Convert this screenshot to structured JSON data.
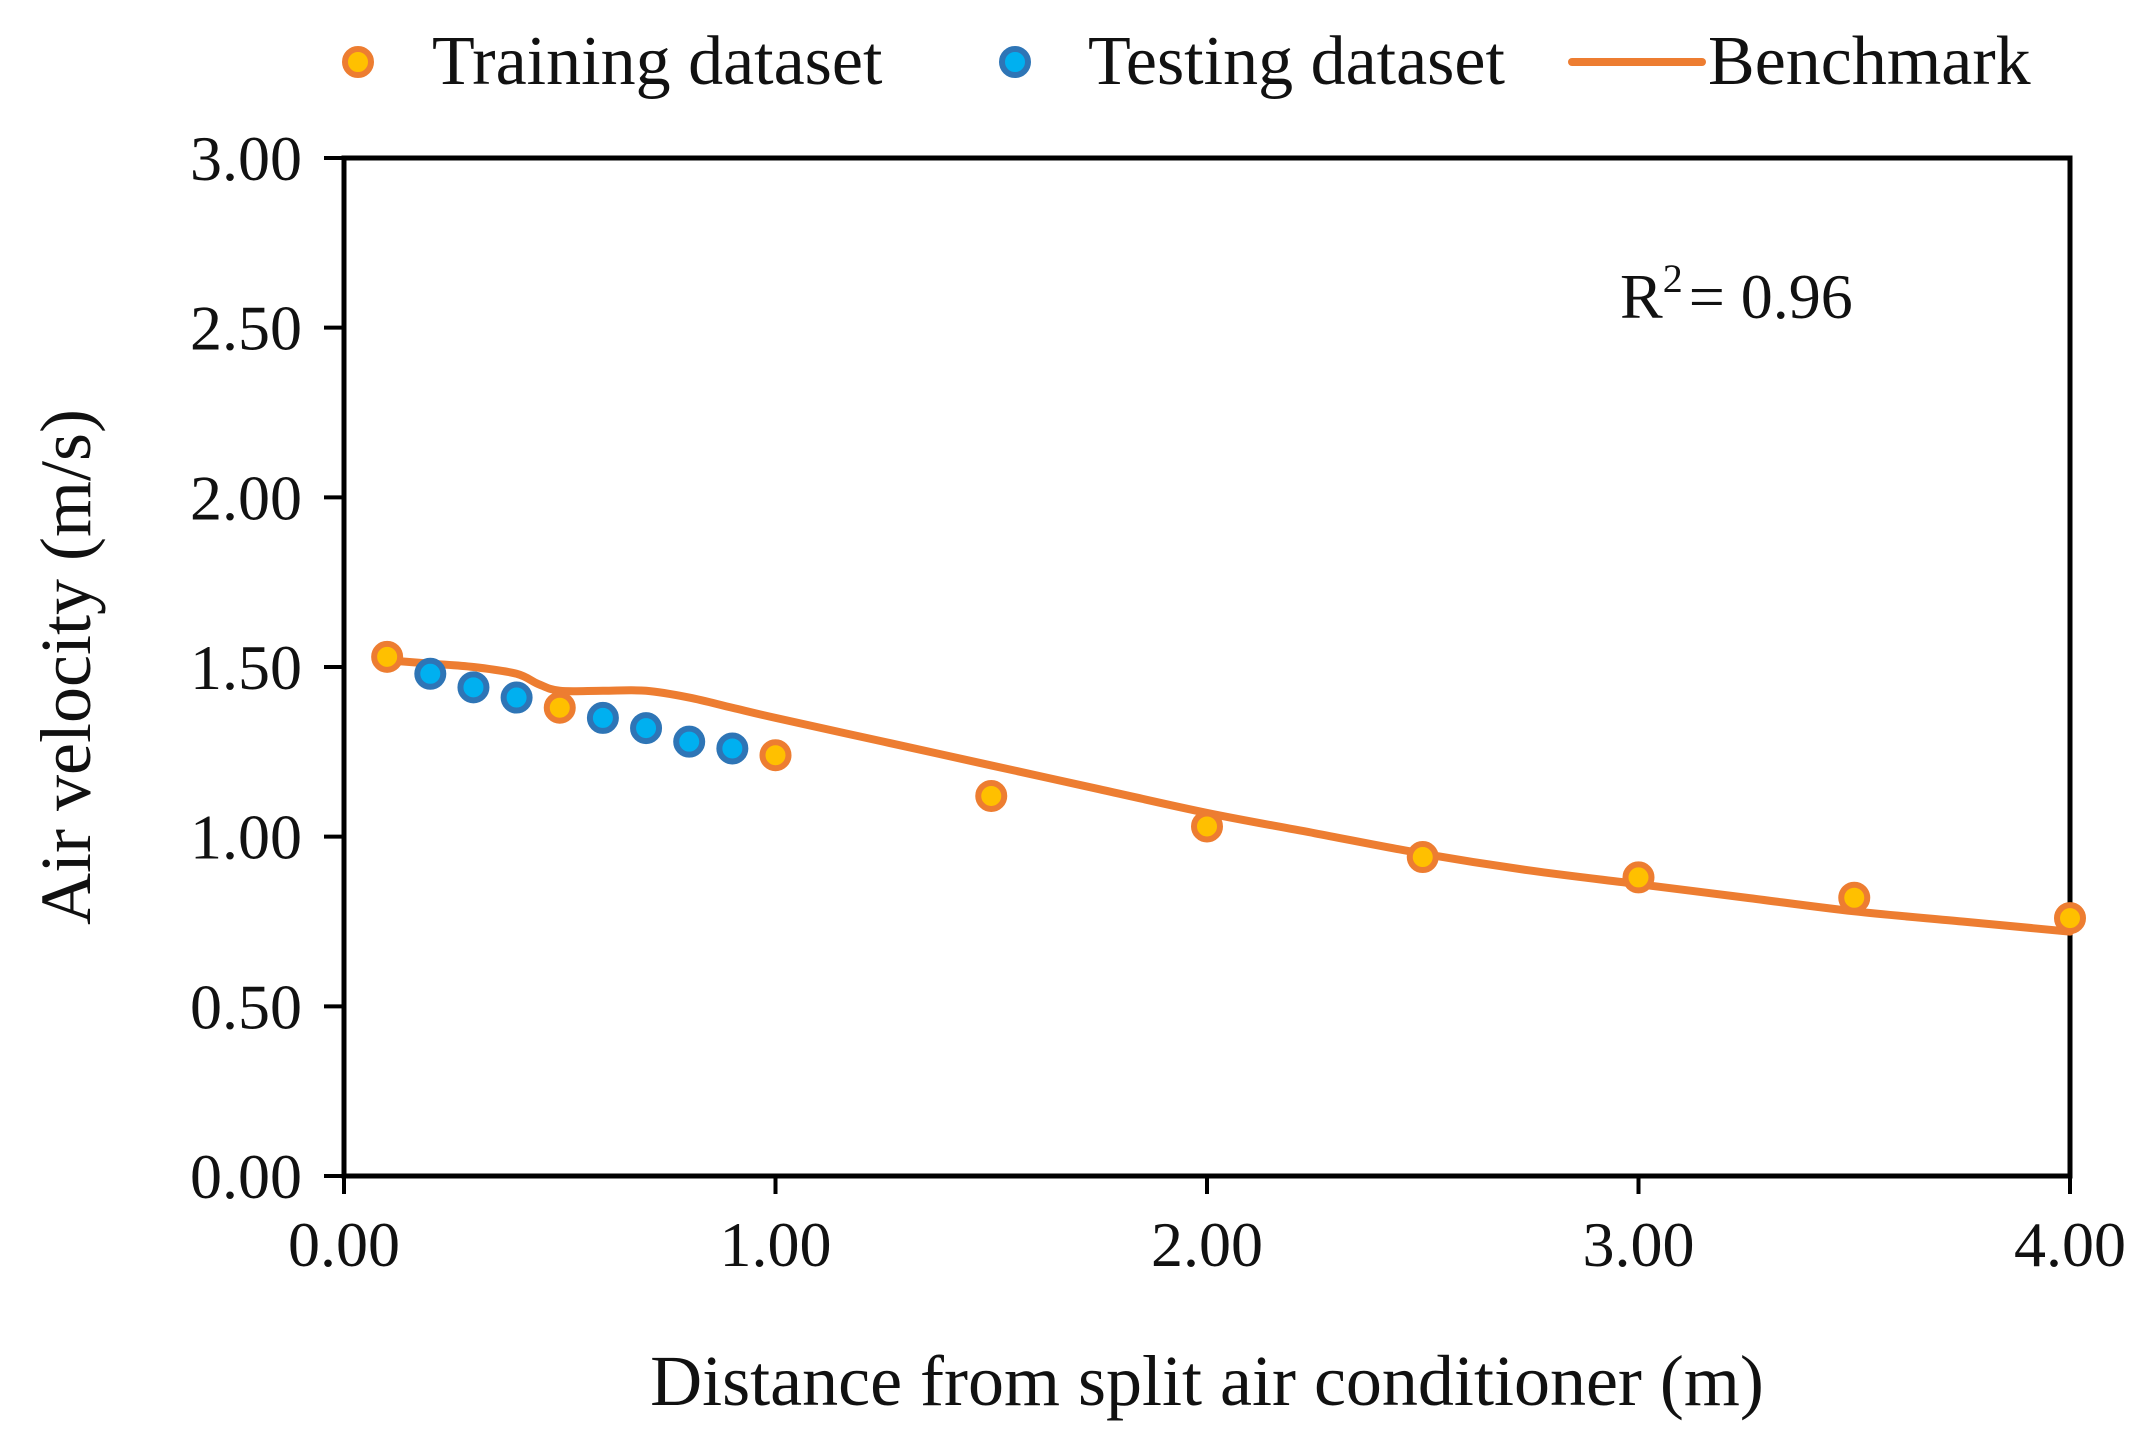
{
  "chart_data": {
    "type": "scatter",
    "title": "",
    "xlabel": "Distance from split air conditioner (m)",
    "ylabel": "Air velocity (m/s)",
    "xlim": [
      0,
      4
    ],
    "ylim": [
      0,
      3
    ],
    "x_ticks": [
      0,
      1,
      2,
      3,
      4
    ],
    "x_tick_labels": [
      "0.00",
      "1.00",
      "2.00",
      "3.00",
      "4.00"
    ],
    "y_ticks": [
      0,
      0.5,
      1,
      1.5,
      2,
      2.5,
      3
    ],
    "y_tick_labels": [
      "0.00",
      "0.50",
      "1.00",
      "1.50",
      "2.00",
      "2.50",
      "3.00"
    ],
    "grid": false,
    "legend_position": "top",
    "annotation": {
      "prefix": "R",
      "superscript": "2",
      "text": "= 0.96"
    },
    "series": [
      {
        "name": "Training dataset",
        "kind": "scatter",
        "color": "#FFC000",
        "edge_color": "#ED7D31",
        "x": [
          0.1,
          0.5,
          1.0,
          1.5,
          2.0,
          2.5,
          3.0,
          3.5,
          4.0
        ],
        "y": [
          1.53,
          1.38,
          1.24,
          1.12,
          1.03,
          0.94,
          0.88,
          0.82,
          0.76
        ]
      },
      {
        "name": "Testing dataset",
        "kind": "scatter",
        "color": "#00B0F0",
        "edge_color": "#2E75B6",
        "x": [
          0.2,
          0.3,
          0.4,
          0.6,
          0.7,
          0.8,
          0.9
        ],
        "y": [
          1.48,
          1.44,
          1.41,
          1.35,
          1.32,
          1.28,
          1.26
        ]
      },
      {
        "name": "Benchmark",
        "kind": "line",
        "color": "#ED7D31",
        "x": [
          0.1,
          0.2,
          0.3,
          0.4,
          0.45,
          0.5,
          0.6,
          0.7,
          0.8,
          0.9,
          1.0,
          1.25,
          1.5,
          1.75,
          2.0,
          2.25,
          2.5,
          2.75,
          3.0,
          3.25,
          3.5,
          3.75,
          4.0
        ],
        "y": [
          1.52,
          1.51,
          1.5,
          1.48,
          1.45,
          1.43,
          1.43,
          1.43,
          1.41,
          1.38,
          1.35,
          1.28,
          1.21,
          1.14,
          1.07,
          1.01,
          0.95,
          0.9,
          0.86,
          0.82,
          0.78,
          0.75,
          0.72
        ]
      }
    ]
  }
}
